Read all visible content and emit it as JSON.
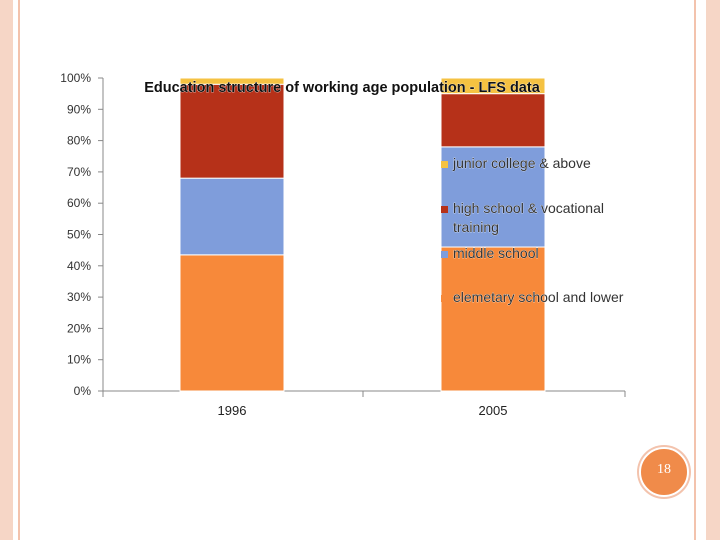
{
  "slide": {
    "page_number": "18"
  },
  "colors": {
    "elementary": "#f7893a",
    "middle": "#7f9ddb",
    "high": "#b63119",
    "college": "#f5c242",
    "axis": "#888888",
    "frame": "#f6d6c6",
    "badge": "#f08b4a"
  },
  "chart_data": {
    "type": "bar",
    "stacked": true,
    "title": "Education structure of working age population - LFS data",
    "categories": [
      "1996",
      "2005"
    ],
    "series": [
      {
        "name": "elemetary school and lower",
        "color": "#f7893a",
        "values": [
          43.5,
          46
        ]
      },
      {
        "name": "middle school",
        "color": "#7f9ddb",
        "values": [
          24.5,
          32
        ]
      },
      {
        "name": "high school & vocational training",
        "color": "#b63119",
        "values": [
          30,
          17
        ]
      },
      {
        "name": "junior college & above",
        "color": "#f5c242",
        "values": [
          2,
          5
        ]
      }
    ],
    "ylim": [
      0,
      100
    ],
    "ytick_labels": [
      "0%",
      "10%",
      "20%",
      "30%",
      "40%",
      "50%",
      "60%",
      "70%",
      "80%",
      "90%",
      "100%"
    ],
    "legend_position": "right",
    "grid": false
  }
}
